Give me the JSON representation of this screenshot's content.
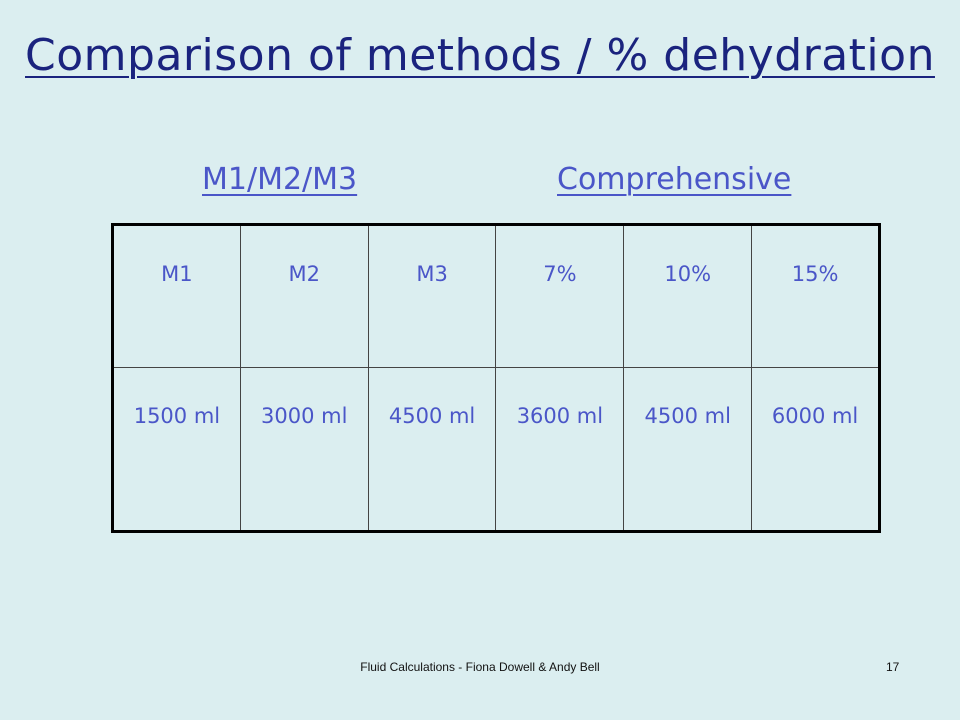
{
  "slide": {
    "title": "Comparison of methods / % dehydration",
    "heading_left": "M1/M2/M3",
    "heading_right": "Comprehensive"
  },
  "table": {
    "headers": [
      "M1",
      "M2",
      "M3",
      "7%",
      "10%",
      "15%"
    ],
    "values": [
      "1500 ml",
      "3000 ml",
      "4500 ml",
      "3600 ml",
      "4500 ml",
      "6000 ml"
    ]
  },
  "footer": {
    "text": "Fluid Calculations - Fiona Dowell & Andy Bell",
    "page_number": "17"
  }
}
